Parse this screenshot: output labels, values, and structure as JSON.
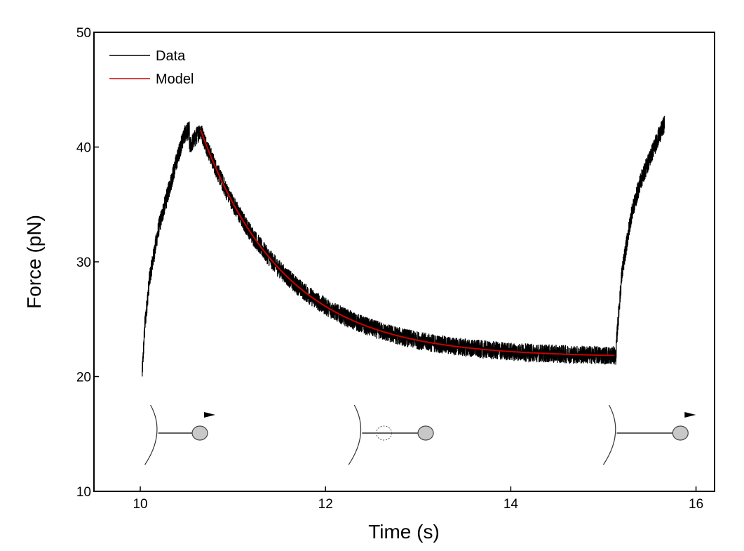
{
  "chart_data": {
    "type": "line",
    "title": "",
    "xlabel": "Time (s)",
    "ylabel": "Force (pN)",
    "xlim": [
      9.5,
      16.2
    ],
    "ylim": [
      10,
      50
    ],
    "xticks": [
      10,
      12,
      14,
      16
    ],
    "yticks": [
      10,
      20,
      30,
      40,
      50
    ],
    "grid": false,
    "legend": {
      "placement": "top-left",
      "entries": [
        "Data",
        "Model"
      ]
    },
    "colors": {
      "Data": "#000000",
      "Model": "#cc0000"
    },
    "series": [
      {
        "name": "Data",
        "noise_pN": 0.8,
        "segments": [
          {
            "kind": "rise",
            "x": [
              10.02,
              10.05,
              10.1,
              10.2,
              10.3,
              10.4,
              10.47,
              10.53
            ],
            "y": [
              20.2,
              24.5,
              28.5,
              33.0,
              36.0,
              39.0,
              41.0,
              41.5
            ]
          },
          {
            "kind": "relaxation",
            "x_start": 10.53,
            "x_end": 15.13,
            "baseline": 21.7,
            "amplitude": 19.8,
            "tau_s": 0.9,
            "y_start": 40.0
          },
          {
            "kind": "rise",
            "x": [
              15.13,
              15.15,
              15.2,
              15.3,
              15.4,
              15.5,
              15.6,
              15.66
            ],
            "y": [
              21.2,
              24.0,
              29.0,
              34.0,
              37.0,
              39.0,
              41.0,
              42.0
            ]
          }
        ]
      },
      {
        "name": "Model",
        "kind": "exponential_decay",
        "x_start": 10.65,
        "x_end": 15.12,
        "baseline": 21.7,
        "amplitude": 19.8,
        "tau_s": 0.9
      }
    ],
    "schematics": [
      {
        "name": "schematic-pull",
        "x": 10.05,
        "bead_offset": 0.65,
        "ghost_bead": false,
        "arrow": true
      },
      {
        "name": "schematic-relax",
        "x": 12.25,
        "bead_offset": 1.0,
        "ghost_bead": true,
        "arrow": false
      },
      {
        "name": "schematic-pull-again",
        "x": 15.0,
        "bead_offset": 1.0,
        "ghost_bead": false,
        "arrow": true
      }
    ]
  }
}
